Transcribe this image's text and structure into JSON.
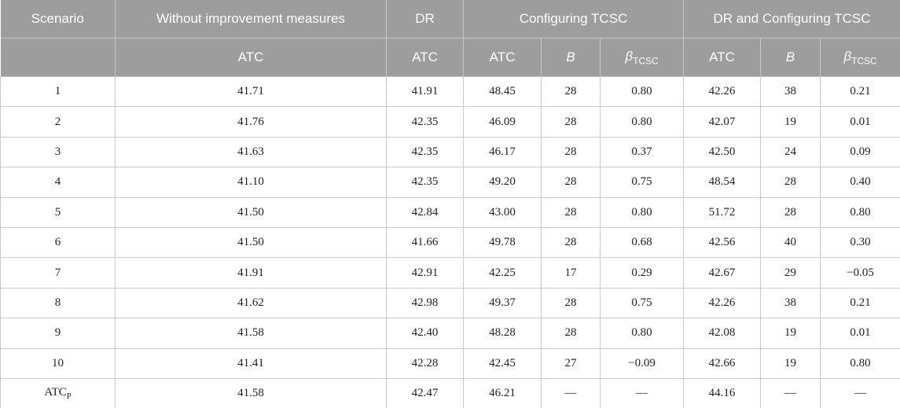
{
  "table": {
    "header_top": [
      "Scenario",
      "Without improvement measures",
      "DR",
      "Configuring TCSC",
      "DR and Configuring TCSC"
    ],
    "header_sub": [
      "ATC",
      "ATC",
      "ATC",
      "B",
      {
        "text": "β",
        "subscript": "TCSC"
      },
      "ATC",
      "B",
      {
        "text": "β",
        "subscript": "TCSC"
      }
    ],
    "rows": [
      [
        "1",
        "41.71",
        "41.91",
        "48.45",
        "28",
        "0.80",
        "42.26",
        "38",
        "0.21"
      ],
      [
        "2",
        "41.76",
        "42.35",
        "46.09",
        "28",
        "0.80",
        "42.07",
        "19",
        "0.01"
      ],
      [
        "3",
        "41.63",
        "42.35",
        "46.17",
        "28",
        "0.37",
        "42.50",
        "24",
        "0.09"
      ],
      [
        "4",
        "41.10",
        "42.35",
        "49.20",
        "28",
        "0.75",
        "48.54",
        "28",
        "0.40"
      ],
      [
        "5",
        "41.50",
        "42.84",
        "43.00",
        "28",
        "0.80",
        "51.72",
        "28",
        "0.80"
      ],
      [
        "6",
        "41.50",
        "41.66",
        "49.78",
        "28",
        "0.68",
        "42.56",
        "40",
        "0.30"
      ],
      [
        "7",
        "41.91",
        "42.91",
        "42.25",
        "17",
        "0.29",
        "42.67",
        "29",
        "−0.05"
      ],
      [
        "8",
        "41.62",
        "42.98",
        "49.37",
        "28",
        "0.75",
        "42.26",
        "38",
        "0.21"
      ],
      [
        "9",
        "41.58",
        "42.40",
        "48.28",
        "28",
        "0.80",
        "42.08",
        "19",
        "0.01"
      ],
      [
        "10",
        "41.41",
        "42.28",
        "42.45",
        "27",
        "−0.09",
        "42.66",
        "19",
        "0.80"
      ],
      [
        {
          "text": "ATC",
          "subscript": "P"
        },
        "41.58",
        "42.47",
        "46.21",
        "—",
        "—",
        "44.16",
        "—",
        "—"
      ]
    ]
  }
}
